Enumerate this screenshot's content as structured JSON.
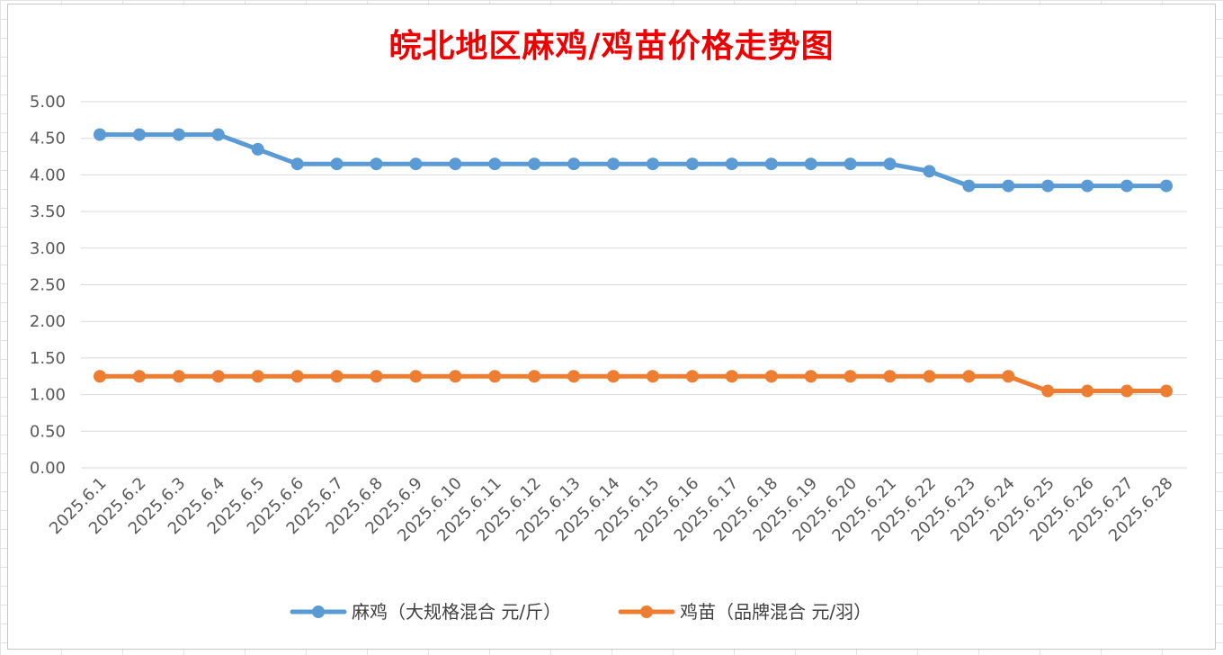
{
  "chart_data": {
    "type": "line",
    "title": "皖北地区麻鸡/鸡苗价格走势图",
    "xlabel": "",
    "ylabel": "",
    "ylim": [
      0,
      5
    ],
    "ytick_step": 0.5,
    "grid": "horizontal",
    "legend_position": "bottom",
    "categories": [
      "2025.6.1",
      "2025.6.2",
      "2025.6.3",
      "2025.6.4",
      "2025.6.5",
      "2025.6.6",
      "2025.6.7",
      "2025.6.8",
      "2025.6.9",
      "2025.6.10",
      "2025.6.11",
      "2025.6.12",
      "2025.6.13",
      "2025.6.14",
      "2025.6.15",
      "2025.6.16",
      "2025.6.17",
      "2025.6.18",
      "2025.6.19",
      "2025.6.20",
      "2025.6.21",
      "2025.6.22",
      "2025.6.23",
      "2025.6.24",
      "2025.6.25",
      "2025.6.26",
      "2025.6.27",
      "2025.6.28"
    ],
    "yticks": [
      "0.00",
      "0.50",
      "1.00",
      "1.50",
      "2.00",
      "2.50",
      "3.00",
      "3.50",
      "4.00",
      "4.50",
      "5.00"
    ],
    "series": [
      {
        "name": "麻鸡（大规格混合 元/斤）",
        "color": "#5b9bd5",
        "values": [
          4.55,
          4.55,
          4.55,
          4.55,
          4.35,
          4.15,
          4.15,
          4.15,
          4.15,
          4.15,
          4.15,
          4.15,
          4.15,
          4.15,
          4.15,
          4.15,
          4.15,
          4.15,
          4.15,
          4.15,
          4.15,
          4.05,
          3.85,
          3.85,
          3.85,
          3.85,
          3.85,
          3.85
        ]
      },
      {
        "name": "鸡苗（品牌混合 元/羽）",
        "color": "#ed7d31",
        "values": [
          1.25,
          1.25,
          1.25,
          1.25,
          1.25,
          1.25,
          1.25,
          1.25,
          1.25,
          1.25,
          1.25,
          1.25,
          1.25,
          1.25,
          1.25,
          1.25,
          1.25,
          1.25,
          1.25,
          1.25,
          1.25,
          1.25,
          1.25,
          1.25,
          1.05,
          1.05,
          1.05,
          1.05
        ]
      }
    ]
  }
}
